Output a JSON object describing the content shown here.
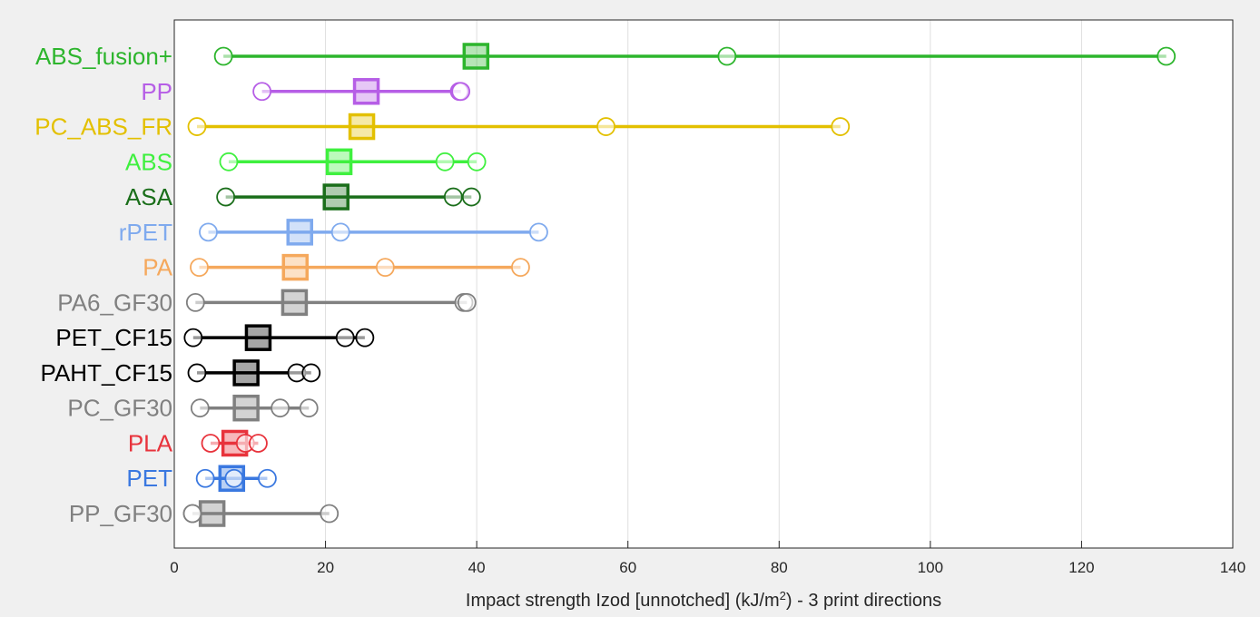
{
  "chart_data": {
    "type": "scatter",
    "xlabel_main": "Impact strength Izod [unnotched] (kJ/m",
    "xlabel_sup": "2",
    "xlabel_tail": ") - 3 print directions",
    "xlim": [
      0,
      140
    ],
    "xticks": [
      0,
      20,
      40,
      60,
      80,
      100,
      120,
      140
    ],
    "grid": "vertical",
    "categories": [
      {
        "name": "ABS_fusion+",
        "color": "#2db52d",
        "points": [
          6.5,
          73.1,
          131.2
        ],
        "mean": 39.9
      },
      {
        "name": "PP",
        "color": "#b65ee6",
        "points": [
          11.6,
          37.7,
          37.9
        ],
        "mean": 25.4
      },
      {
        "name": "PC_ABS_FR",
        "color": "#e3c000",
        "points": [
          3.0,
          57.1,
          88.1
        ],
        "mean": 24.8
      },
      {
        "name": "ABS",
        "color": "#3ff03f",
        "points": [
          7.2,
          35.8,
          40.0
        ],
        "mean": 21.8
      },
      {
        "name": "ASA",
        "color": "#1a6e1a",
        "points": [
          6.8,
          36.9,
          39.3
        ],
        "mean": 21.4
      },
      {
        "name": "rPET",
        "color": "#7faaee",
        "points": [
          4.5,
          22.0,
          48.2
        ],
        "mean": 16.6
      },
      {
        "name": "PA",
        "color": "#f5a85c",
        "points": [
          3.3,
          27.9,
          45.8
        ],
        "mean": 16.0
      },
      {
        "name": "PA6_GF30",
        "color": "#808080",
        "points": [
          2.8,
          38.3,
          38.7
        ],
        "mean": 15.9
      },
      {
        "name": "PET_CF15",
        "color": "#000000",
        "points": [
          2.5,
          22.6,
          25.2
        ],
        "mean": 11.1
      },
      {
        "name": "PAHT_CF15",
        "color": "#000000",
        "points": [
          3.0,
          16.2,
          18.1
        ],
        "mean": 9.5
      },
      {
        "name": "PC_GF30",
        "color": "#808080",
        "points": [
          3.4,
          14.0,
          17.8
        ],
        "mean": 9.5
      },
      {
        "name": "PLA",
        "color": "#e8333c",
        "points": [
          4.8,
          9.4,
          11.1
        ],
        "mean": 8.0
      },
      {
        "name": "PET",
        "color": "#3a78e0",
        "points": [
          4.1,
          7.9,
          12.3
        ],
        "mean": 7.6
      },
      {
        "name": "PP_GF30",
        "color": "#808080",
        "points": [
          2.4,
          20.5,
          2.4
        ],
        "mean": 5.0
      }
    ]
  }
}
